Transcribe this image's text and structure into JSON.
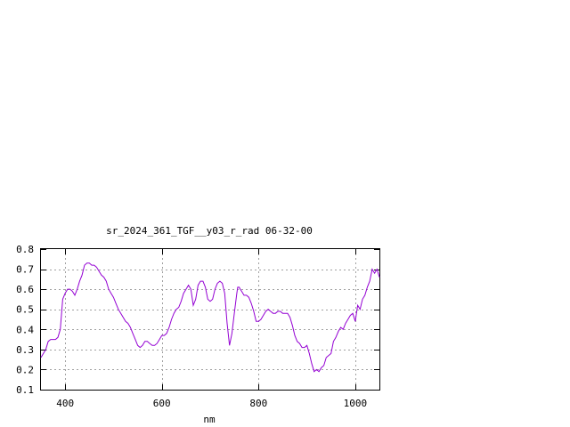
{
  "chart_data": {
    "type": "line",
    "title": "sr_2024_361_TGF__y03_r_rad 06-32-00",
    "xlabel": "nm",
    "ylabel": "",
    "xlim": [
      350,
      1050
    ],
    "ylim": [
      0.1,
      0.8
    ],
    "xticks": [
      400,
      600,
      800,
      1000
    ],
    "yticks": [
      0.1,
      0.2,
      0.3,
      0.4,
      0.5,
      0.6,
      0.7,
      0.8
    ],
    "xtick_labels": [
      "400",
      "600",
      "800",
      "1000"
    ],
    "ytick_labels": [
      "0.1",
      "0.2",
      "0.3",
      "0.4",
      "0.5",
      "0.6",
      "0.7",
      "0.8"
    ],
    "grid": true,
    "line_color": "#9400d3",
    "series": [
      {
        "x": [
          350,
          355,
          360,
          365,
          370,
          375,
          380,
          385,
          390,
          395,
          400,
          405,
          410,
          415,
          420,
          425,
          430,
          435,
          440,
          445,
          450,
          455,
          460,
          465,
          470,
          475,
          480,
          485,
          490,
          495,
          500,
          505,
          510,
          515,
          520,
          525,
          530,
          535,
          540,
          545,
          550,
          555,
          560,
          565,
          570,
          575,
          580,
          585,
          590,
          595,
          600,
          605,
          610,
          615,
          620,
          625,
          630,
          635,
          640,
          645,
          650,
          655,
          660,
          665,
          670,
          675,
          680,
          685,
          690,
          695,
          700,
          705,
          710,
          715,
          720,
          725,
          730,
          735,
          740,
          745,
          750,
          755,
          757,
          760,
          762,
          765,
          770,
          775,
          780,
          785,
          790,
          795,
          800,
          805,
          810,
          815,
          820,
          825,
          830,
          835,
          840,
          845,
          850,
          855,
          860,
          865,
          870,
          875,
          880,
          885,
          890,
          895,
          900,
          905,
          910,
          915,
          920,
          925,
          930,
          935,
          940,
          945,
          950,
          955,
          960,
          965,
          970,
          975,
          980,
          985,
          990,
          995,
          1000,
          1005,
          1010,
          1015,
          1020,
          1025,
          1030,
          1035,
          1040,
          1045,
          1050
        ],
        "y": [
          0.26,
          0.28,
          0.3,
          0.34,
          0.35,
          0.35,
          0.35,
          0.36,
          0.4,
          0.55,
          0.58,
          0.6,
          0.6,
          0.59,
          0.57,
          0.6,
          0.64,
          0.67,
          0.72,
          0.73,
          0.73,
          0.72,
          0.72,
          0.71,
          0.69,
          0.67,
          0.66,
          0.64,
          0.6,
          0.58,
          0.56,
          0.53,
          0.5,
          0.48,
          0.46,
          0.44,
          0.43,
          0.41,
          0.38,
          0.35,
          0.32,
          0.31,
          0.32,
          0.34,
          0.34,
          0.33,
          0.32,
          0.32,
          0.33,
          0.35,
          0.37,
          0.37,
          0.38,
          0.41,
          0.45,
          0.48,
          0.5,
          0.51,
          0.54,
          0.58,
          0.6,
          0.62,
          0.6,
          0.52,
          0.55,
          0.62,
          0.64,
          0.64,
          0.61,
          0.55,
          0.54,
          0.55,
          0.6,
          0.63,
          0.64,
          0.63,
          0.58,
          0.43,
          0.32,
          0.38,
          0.48,
          0.58,
          0.61,
          0.61,
          0.6,
          0.59,
          0.57,
          0.57,
          0.56,
          0.53,
          0.49,
          0.44,
          0.44,
          0.45,
          0.47,
          0.49,
          0.5,
          0.49,
          0.48,
          0.48,
          0.49,
          0.49,
          0.48,
          0.48,
          0.48,
          0.46,
          0.42,
          0.37,
          0.34,
          0.33,
          0.31,
          0.31,
          0.32,
          0.28,
          0.23,
          0.19,
          0.2,
          0.19,
          0.21,
          0.22,
          0.26,
          0.27,
          0.28,
          0.34,
          0.36,
          0.39,
          0.41,
          0.4,
          0.43,
          0.45,
          0.47,
          0.48,
          0.44,
          0.52,
          0.5,
          0.55,
          0.57,
          0.61,
          0.64,
          0.7,
          0.68,
          0.7,
          0.66
        ]
      }
    ]
  }
}
